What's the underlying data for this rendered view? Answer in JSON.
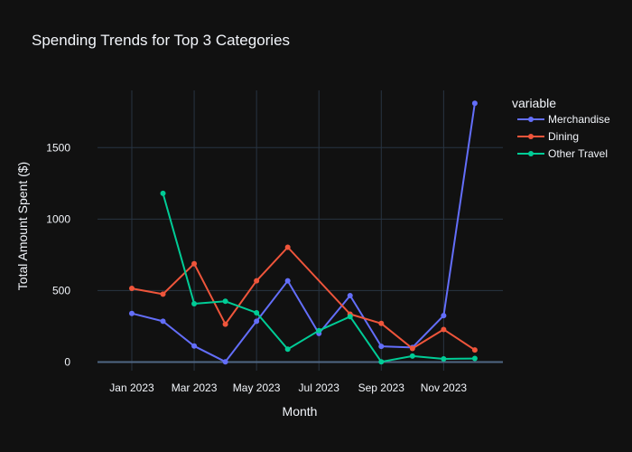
{
  "chart_data": {
    "type": "line",
    "title": "Spending Trends for Top 3 Categories",
    "xlabel": "Month",
    "ylabel": "Total Amount Spent ($)",
    "legend_title": "variable",
    "legend_placement": "top-right",
    "grid": true,
    "x_tick_labels": [
      "Jan 2023",
      "Mar 2023",
      "May 2023",
      "Jul 2023",
      "Sep 2023",
      "Nov 2023"
    ],
    "x_tick_months": [
      0,
      2,
      4,
      6,
      8,
      10
    ],
    "y_ticks": [
      0,
      500,
      1000,
      1500
    ],
    "ylim": [
      -60,
      1900
    ],
    "xlim_months": [
      -1.1,
      11.9
    ],
    "background_color": "#111111",
    "grid_color": "#283442",
    "series": [
      {
        "name": "Merchandise",
        "color": "#636efa",
        "points": [
          {
            "m": 0,
            "y": 340
          },
          {
            "m": 1,
            "y": 285
          },
          {
            "m": 2,
            "y": 112
          },
          {
            "m": 3,
            "y": 2
          },
          {
            "m": 4,
            "y": 285
          },
          {
            "m": 5,
            "y": 568
          },
          {
            "m": 6,
            "y": 200
          },
          {
            "m": 7,
            "y": 465
          },
          {
            "m": 8,
            "y": 110
          },
          {
            "m": 9,
            "y": 102
          },
          {
            "m": 10,
            "y": 325
          },
          {
            "m": 11,
            "y": 1810
          }
        ]
      },
      {
        "name": "Dining",
        "color": "#ef553b",
        "points": [
          {
            "m": 0,
            "y": 515
          },
          {
            "m": 1,
            "y": 475
          },
          {
            "m": 2,
            "y": 688
          },
          {
            "m": 3,
            "y": 265
          },
          {
            "m": 4,
            "y": 568
          },
          {
            "m": 5,
            "y": 803
          },
          {
            "m": 7,
            "y": 335
          },
          {
            "m": 8,
            "y": 270
          },
          {
            "m": 9,
            "y": 95
          },
          {
            "m": 10,
            "y": 228
          },
          {
            "m": 11,
            "y": 85
          }
        ]
      },
      {
        "name": "Other Travel",
        "color": "#00cc96",
        "points": [
          {
            "m": 1,
            "y": 1180
          },
          {
            "m": 2,
            "y": 408
          },
          {
            "m": 3,
            "y": 425
          },
          {
            "m": 4,
            "y": 345
          },
          {
            "m": 5,
            "y": 90
          },
          {
            "m": 6,
            "y": 220
          },
          {
            "m": 7,
            "y": 318
          },
          {
            "m": 8,
            "y": 2
          },
          {
            "m": 9,
            "y": 42
          },
          {
            "m": 10,
            "y": 22
          },
          {
            "m": 11,
            "y": 25
          }
        ]
      }
    ]
  }
}
